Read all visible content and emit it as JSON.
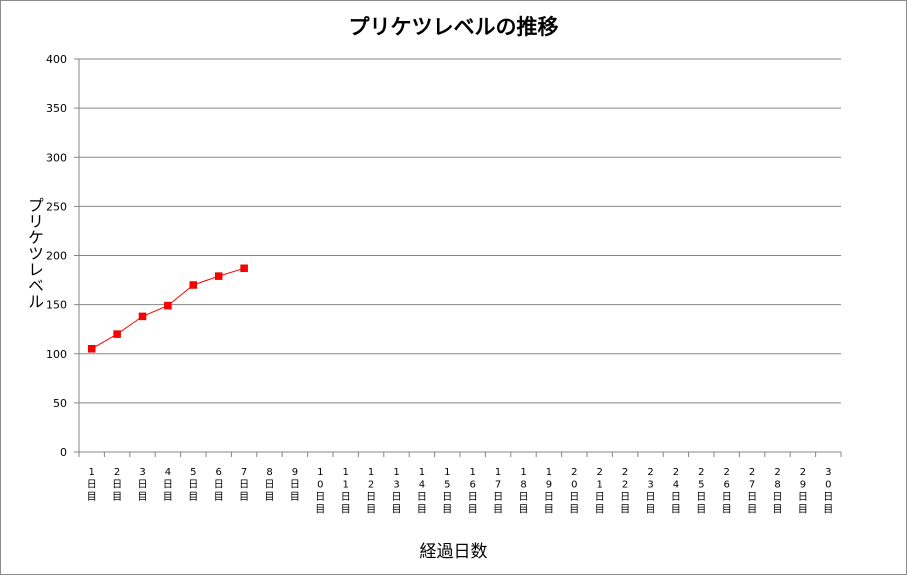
{
  "chart_data": {
    "type": "line",
    "title": "プリケツレベルの推移",
    "xlabel": "経過日数",
    "ylabel": "プリケツレベル",
    "ylim": [
      0,
      400
    ],
    "yticks": [
      0,
      50,
      100,
      150,
      200,
      250,
      300,
      350,
      400
    ],
    "grid": true,
    "legend": "none",
    "categories": [
      "1日目",
      "2日目",
      "3日目",
      "4日目",
      "5日目",
      "6日目",
      "7日目",
      "8日目",
      "9日目",
      "10日目",
      "11日目",
      "12日目",
      "13日目",
      "14日目",
      "15日目",
      "16日目",
      "17日目",
      "18日目",
      "19日目",
      "20日目",
      "21日目",
      "22日目",
      "23日目",
      "24日目",
      "25日目",
      "26日目",
      "27日目",
      "28日目",
      "29日目",
      "30日目"
    ],
    "series": [
      {
        "values": [
          105,
          120,
          138,
          149,
          170,
          179,
          187,
          null,
          null,
          null,
          null,
          null,
          null,
          null,
          null,
          null,
          null,
          null,
          null,
          null,
          null,
          null,
          null,
          null,
          null,
          null,
          null,
          null,
          null,
          null
        ],
        "color": "#ff0000"
      }
    ]
  }
}
